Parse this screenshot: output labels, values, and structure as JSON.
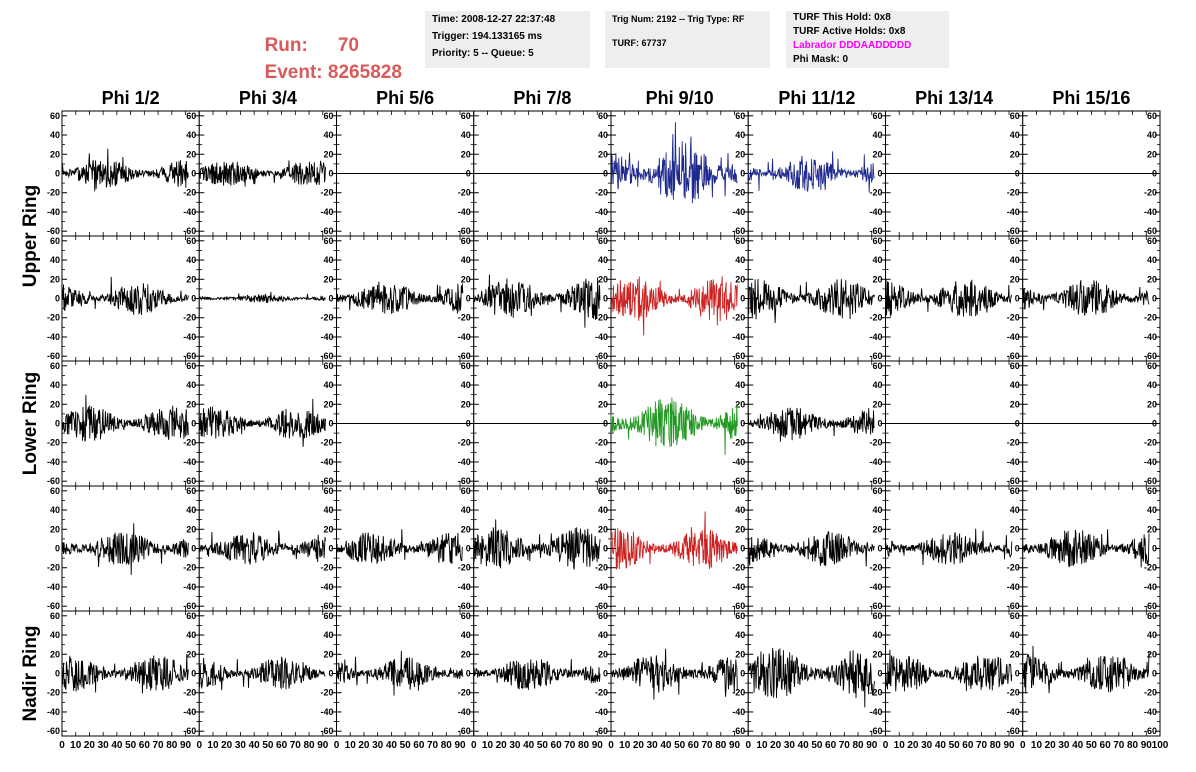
{
  "header": {
    "run_label": "Run:",
    "run_value": "70",
    "event_label": "Event:",
    "event_value": "8265828",
    "label_color": "#d95a5a"
  },
  "info": {
    "time": "Time: 2008-12-27 22:37:48",
    "trigger": "Trigger: 194.133165 ms",
    "priority": "Priority: 5 -- Queue: 5",
    "trig_num": "Trig Num: 2192 -- Trig Type: RF",
    "turf": "TURF: 67737",
    "turf_hold": "TURF This Hold: 0x8",
    "turf_active": "TURF Active Holds: 0x8",
    "labrador": "Labrador DDDAADDDDD",
    "phi_mask": "Phi Mask: 0",
    "labrador_color": "#ff00ff"
  },
  "chart_data": {
    "type": "line",
    "columns": [
      "Phi 1/2",
      "Phi 3/4",
      "Phi 5/6",
      "Phi 7/8",
      "Phi 9/10",
      "Phi 11/12",
      "Phi 13/14",
      "Phi 15/16"
    ],
    "ring_labels": [
      "Upper Ring",
      "Lower Ring",
      "Nadir Ring"
    ],
    "x_range": [
      0,
      100
    ],
    "y_range": [
      -65,
      65
    ],
    "y_ticks": [
      -60,
      -40,
      -20,
      0,
      20,
      40,
      60
    ],
    "x_tick_labels": [
      "0",
      "10",
      "20",
      "30",
      "40",
      "50",
      "60",
      "70",
      "80",
      "90",
      "100"
    ],
    "rows": [
      [
        {
          "color": "#000000",
          "amp": 10,
          "seed": 11
        },
        {
          "color": "#000000",
          "amp": 9,
          "seed": 12
        },
        {
          "color": "#000000",
          "amp": 0,
          "seed": 13
        },
        {
          "color": "#000000",
          "amp": 0,
          "seed": 14
        },
        {
          "color": "#1f2a8f",
          "amp": 21,
          "seed": 15
        },
        {
          "color": "#1f2a8f",
          "amp": 12,
          "seed": 16
        },
        {
          "color": "#000000",
          "amp": 0,
          "seed": 17
        },
        {
          "color": "#000000",
          "amp": 0,
          "seed": 18
        }
      ],
      [
        {
          "color": "#000000",
          "amp": 11,
          "seed": 21
        },
        {
          "color": "#000000",
          "amp": 3,
          "seed": 22
        },
        {
          "color": "#000000",
          "amp": 12,
          "seed": 23
        },
        {
          "color": "#000000",
          "amp": 14,
          "seed": 24
        },
        {
          "color": "#cc2222",
          "amp": 15,
          "seed": 25
        },
        {
          "color": "#000000",
          "amp": 13,
          "seed": 26
        },
        {
          "color": "#000000",
          "amp": 13,
          "seed": 27
        },
        {
          "color": "#000000",
          "amp": 13,
          "seed": 28
        }
      ],
      [
        {
          "color": "#000000",
          "amp": 12,
          "seed": 31
        },
        {
          "color": "#000000",
          "amp": 11,
          "seed": 32
        },
        {
          "color": "#000000",
          "amp": 0,
          "seed": 33
        },
        {
          "color": "#000000",
          "amp": 0,
          "seed": 34
        },
        {
          "color": "#229922",
          "amp": 18,
          "seed": 35
        },
        {
          "color": "#000000",
          "amp": 11,
          "seed": 36
        },
        {
          "color": "#000000",
          "amp": 0,
          "seed": 37
        },
        {
          "color": "#000000",
          "amp": 0,
          "seed": 38
        }
      ],
      [
        {
          "color": "#000000",
          "amp": 12,
          "seed": 41
        },
        {
          "color": "#000000",
          "amp": 11,
          "seed": 42
        },
        {
          "color": "#000000",
          "amp": 11,
          "seed": 43
        },
        {
          "color": "#000000",
          "amp": 14,
          "seed": 44
        },
        {
          "color": "#cc2222",
          "amp": 14,
          "seed": 45
        },
        {
          "color": "#000000",
          "amp": 12,
          "seed": 46
        },
        {
          "color": "#000000",
          "amp": 11,
          "seed": 47
        },
        {
          "color": "#000000",
          "amp": 13,
          "seed": 48
        }
      ],
      [
        {
          "color": "#000000",
          "amp": 12,
          "seed": 51
        },
        {
          "color": "#000000",
          "amp": 11,
          "seed": 52
        },
        {
          "color": "#000000",
          "amp": 11,
          "seed": 53
        },
        {
          "color": "#000000",
          "amp": 12,
          "seed": 54
        },
        {
          "color": "#000000",
          "amp": 13,
          "seed": 55
        },
        {
          "color": "#000000",
          "amp": 17,
          "seed": 56
        },
        {
          "color": "#000000",
          "amp": 13,
          "seed": 57
        },
        {
          "color": "#000000",
          "amp": 13,
          "seed": 58
        }
      ]
    ]
  }
}
